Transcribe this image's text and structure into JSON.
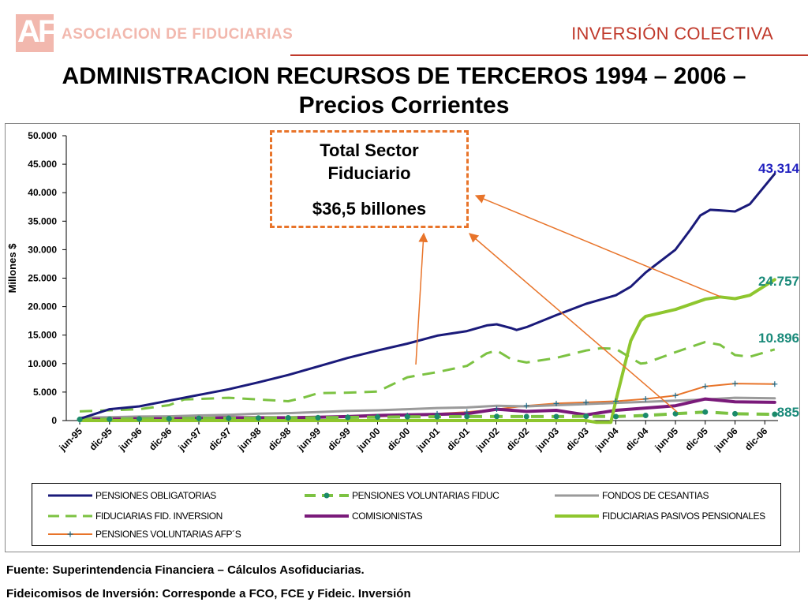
{
  "header": {
    "logo_letters": "AF",
    "logo_text": "ASOCIACION DE FIDUCIARIAS",
    "section": "INVERSIÓN COLECTIVA"
  },
  "title_line1": "ADMINISTRACION RECURSOS DE TERCEROS 1994 – 2006 –",
  "title_line2": "Precios Corrientes",
  "callout": {
    "line1": "Total Sector",
    "line2": "Fiduciario",
    "line3": "$36,5 billones"
  },
  "footer": {
    "source": "Fuente: Superintendencia Financiera – Cálculos Asofiduciarias.",
    "note": "Fideicomisos de Inversión: Corresponde a FCO, FCE y Fideic. Inversión"
  },
  "chart_data": {
    "type": "line",
    "ylabel": "Millones $",
    "ylim": [
      0,
      50000
    ],
    "yticks": [
      0,
      5000,
      10000,
      15000,
      20000,
      25000,
      30000,
      35000,
      40000,
      45000,
      50000
    ],
    "ytick_labels": [
      "0",
      "5.000",
      "10.000",
      "15.000",
      "20.000",
      "25.000",
      "30.000",
      "35.000",
      "40.000",
      "45.000",
      "50.000"
    ],
    "x_ticks": [
      "jun-95",
      "dic-95",
      "jun-96",
      "dic-96",
      "jun-97",
      "dic-97",
      "jun-98",
      "dic-98",
      "jun-99",
      "dic-99",
      "jun-00",
      "dic-00",
      "jun-01",
      "dic-01",
      "jun-02",
      "dic-02",
      "jun-03",
      "dic-03",
      "jun-04",
      "dic-04",
      "jun-05",
      "dic-05",
      "jun-06",
      "dic-06"
    ],
    "x_range": [
      "jun-95",
      "feb-07"
    ],
    "grid": false,
    "legend_position": "bottom",
    "end_labels": [
      {
        "text": "43.314",
        "value": 43314,
        "color": "#1f1fbf"
      },
      {
        "text": "24.757",
        "value": 24757,
        "color": "#1a8a7a"
      },
      {
        "text": "10.896",
        "value": 10896,
        "color": "#1a8a7a"
      },
      {
        "text": "885",
        "value": 885,
        "color": "#1a8a7a"
      }
    ],
    "series": [
      {
        "name": "PENSIONES OBLIGATORIAS",
        "color": "#1a1a7a",
        "style": "solid",
        "width": 3,
        "points": [
          [
            "jun-95",
            300
          ],
          [
            "dic-95",
            2000
          ],
          [
            "jun-96",
            2500
          ],
          [
            "dic-96",
            3500
          ],
          [
            "jun-97",
            4500
          ],
          [
            "dic-97",
            5500
          ],
          [
            "jun-98",
            6700
          ],
          [
            "dic-98",
            8000
          ],
          [
            "jun-99",
            9500
          ],
          [
            "dic-99",
            11000
          ],
          [
            "jun-00",
            12300
          ],
          [
            "dic-00",
            13500
          ],
          [
            "jun-01",
            14900
          ],
          [
            "dic-01",
            15700
          ],
          [
            "abr-02",
            16700
          ],
          [
            "jun-02",
            16900
          ],
          [
            "sep-02",
            16200
          ],
          [
            "oct-02",
            15900
          ],
          [
            "dic-02",
            16400
          ],
          [
            "jun-03",
            18500
          ],
          [
            "dic-03",
            20500
          ],
          [
            "jun-04",
            22000
          ],
          [
            "sep-04",
            23500
          ],
          [
            "dic-04",
            26000
          ],
          [
            "jun-05",
            30000
          ],
          [
            "sep-05",
            33500
          ],
          [
            "nov-05",
            36000
          ],
          [
            "ene-06",
            37000
          ],
          [
            "mar-06",
            36900
          ],
          [
            "jun-06",
            36700
          ],
          [
            "sep-06",
            38000
          ],
          [
            "feb-07",
            43314
          ]
        ]
      },
      {
        "name": "PENSIONES VOLUNTARIAS FIDUC",
        "color": "#7cc242",
        "style": "dashed-markers",
        "width": 4,
        "points": [
          [
            "jun-95",
            200
          ],
          [
            "dic-95",
            250
          ],
          [
            "jun-96",
            300
          ],
          [
            "dic-96",
            350
          ],
          [
            "jun-97",
            400
          ],
          [
            "dic-97",
            420
          ],
          [
            "jun-98",
            450
          ],
          [
            "dic-98",
            480
          ],
          [
            "jun-99",
            500
          ],
          [
            "dic-99",
            550
          ],
          [
            "jun-00",
            600
          ],
          [
            "dic-00",
            650
          ],
          [
            "jun-01",
            680
          ],
          [
            "dic-01",
            700
          ],
          [
            "jun-02",
            720
          ],
          [
            "dic-02",
            700
          ],
          [
            "jun-03",
            700
          ],
          [
            "dic-03",
            750
          ],
          [
            "jun-04",
            700
          ],
          [
            "dic-04",
            900
          ],
          [
            "jun-05",
            1200
          ],
          [
            "dic-05",
            1500
          ],
          [
            "jun-06",
            1200
          ],
          [
            "feb-07",
            1100
          ]
        ]
      },
      {
        "name": "FONDOS DE CESANTIAS",
        "color": "#9a9a9a",
        "style": "solid",
        "width": 3,
        "points": [
          [
            "jun-95",
            500
          ],
          [
            "dic-95",
            600
          ],
          [
            "jun-96",
            700
          ],
          [
            "dic-96",
            750
          ],
          [
            "jun-97",
            900
          ],
          [
            "dic-97",
            1000
          ],
          [
            "jun-98",
            1200
          ],
          [
            "dic-98",
            1300
          ],
          [
            "jun-99",
            1500
          ],
          [
            "dic-99",
            1700
          ],
          [
            "jun-00",
            1800
          ],
          [
            "dic-00",
            2000
          ],
          [
            "jun-01",
            2200
          ],
          [
            "dic-01",
            2300
          ],
          [
            "jun-02",
            2600
          ],
          [
            "dic-02",
            2500
          ],
          [
            "jun-03",
            2700
          ],
          [
            "dic-03",
            2900
          ],
          [
            "jun-04",
            3100
          ],
          [
            "dic-04",
            3300
          ],
          [
            "jun-05",
            3500
          ],
          [
            "dic-05",
            3700
          ],
          [
            "jun-06",
            4000
          ],
          [
            "feb-07",
            3900
          ]
        ]
      },
      {
        "name": "FIDUCIARIAS FID. INVERSION",
        "color": "#7cc242",
        "style": "dashed",
        "width": 3,
        "points": [
          [
            "jun-95",
            1600
          ],
          [
            "dic-95",
            1800
          ],
          [
            "jun-96",
            2000
          ],
          [
            "dic-96",
            2700
          ],
          [
            "mar-97",
            3700
          ],
          [
            "dic-97",
            4000
          ],
          [
            "jun-98",
            3700
          ],
          [
            "dic-98",
            3400
          ],
          [
            "mar-99",
            4000
          ],
          [
            "jun-99",
            4800
          ],
          [
            "dic-99",
            4900
          ],
          [
            "jun-00",
            5100
          ],
          [
            "dic-00",
            7600
          ],
          [
            "jun-01",
            8500
          ],
          [
            "dic-01",
            9600
          ],
          [
            "abr-02",
            11800
          ],
          [
            "jun-02",
            12300
          ],
          [
            "sep-02",
            10700
          ],
          [
            "dic-02",
            10200
          ],
          [
            "jun-03",
            11000
          ],
          [
            "dic-03",
            12300
          ],
          [
            "mar-04",
            12700
          ],
          [
            "jun-04",
            12600
          ],
          [
            "sep-04",
            11000
          ],
          [
            "nov-04",
            10000
          ],
          [
            "dic-04",
            10100
          ],
          [
            "jun-05",
            12000
          ],
          [
            "dic-05",
            13800
          ],
          [
            "mar-06",
            13300
          ],
          [
            "jun-06",
            11500
          ],
          [
            "sep-06",
            11200
          ],
          [
            "feb-07",
            12500
          ]
        ]
      },
      {
        "name": "COMISIONISTAS",
        "color": "#7a1a7a",
        "style": "solid",
        "width": 4,
        "points": [
          [
            "jun-95",
            200
          ],
          [
            "dic-95",
            250
          ],
          [
            "jun-96",
            300
          ],
          [
            "dic-96",
            300
          ],
          [
            "jun-97",
            400
          ],
          [
            "dic-97",
            500
          ],
          [
            "jun-98",
            500
          ],
          [
            "dic-98",
            500
          ],
          [
            "jun-99",
            600
          ],
          [
            "dic-99",
            700
          ],
          [
            "jun-00",
            900
          ],
          [
            "dic-00",
            1000
          ],
          [
            "jun-01",
            1100
          ],
          [
            "dic-01",
            1200
          ],
          [
            "jun-02",
            2000
          ],
          [
            "dic-02",
            1600
          ],
          [
            "jun-03",
            1800
          ],
          [
            "dic-03",
            1000
          ],
          [
            "jun-04",
            1800
          ],
          [
            "dic-04",
            2200
          ],
          [
            "jun-05",
            2600
          ],
          [
            "dic-05",
            3800
          ],
          [
            "jun-06",
            3300
          ],
          [
            "feb-07",
            3200
          ]
        ]
      },
      {
        "name": "FIDUCIARIAS PASIVOS PENSIONALES",
        "color": "#8ec62e",
        "style": "solid",
        "width": 4,
        "points": [
          [
            "jun-95",
            0
          ],
          [
            "dic-95",
            0
          ],
          [
            "jun-96",
            0
          ],
          [
            "dic-96",
            0
          ],
          [
            "jun-97",
            0
          ],
          [
            "dic-97",
            0
          ],
          [
            "jun-98",
            0
          ],
          [
            "dic-98",
            0
          ],
          [
            "jun-99",
            0
          ],
          [
            "dic-99",
            0
          ],
          [
            "jun-00",
            0
          ],
          [
            "dic-00",
            0
          ],
          [
            "jun-01",
            0
          ],
          [
            "dic-01",
            0
          ],
          [
            "jun-02",
            0
          ],
          [
            "dic-02",
            0
          ],
          [
            "jun-03",
            0
          ],
          [
            "dic-03",
            0
          ],
          [
            "feb-04",
            -300
          ],
          [
            "mar-04",
            -300
          ],
          [
            "may-04",
            -300
          ],
          [
            "jun-04",
            3500
          ],
          [
            "sep-04",
            14000
          ],
          [
            "nov-04",
            17500
          ],
          [
            "dic-04",
            18300
          ],
          [
            "jun-05",
            19500
          ],
          [
            "dic-05",
            21300
          ],
          [
            "mar-06",
            21700
          ],
          [
            "jun-06",
            21400
          ],
          [
            "sep-06",
            22000
          ],
          [
            "feb-07",
            24757
          ]
        ]
      },
      {
        "name": "PENSIONES VOLUNTARIAS AFP´S",
        "color": "#e8742a",
        "style": "solid-plus",
        "width": 2,
        "points": [
          [
            "jun-95",
            100
          ],
          [
            "dic-95",
            150
          ],
          [
            "jun-96",
            200
          ],
          [
            "dic-96",
            250
          ],
          [
            "jun-97",
            300
          ],
          [
            "dic-97",
            350
          ],
          [
            "jun-98",
            400
          ],
          [
            "dic-98",
            450
          ],
          [
            "jun-99",
            500
          ],
          [
            "dic-99",
            600
          ],
          [
            "jun-00",
            700
          ],
          [
            "dic-00",
            900
          ],
          [
            "jun-01",
            1200
          ],
          [
            "dic-01",
            1500
          ],
          [
            "jun-02",
            2000
          ],
          [
            "dic-02",
            2600
          ],
          [
            "jun-03",
            3000
          ],
          [
            "dic-03",
            3200
          ],
          [
            "jun-04",
            3400
          ],
          [
            "dic-04",
            3800
          ],
          [
            "jun-05",
            4400
          ],
          [
            "dic-05",
            6000
          ],
          [
            "jun-06",
            6500
          ],
          [
            "feb-07",
            6400
          ]
        ]
      }
    ]
  }
}
